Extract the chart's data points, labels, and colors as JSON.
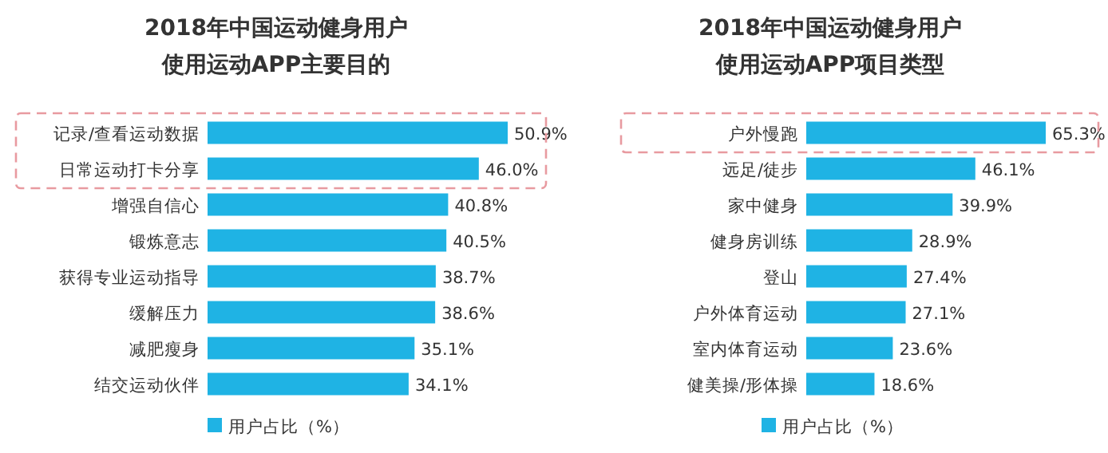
{
  "chart_data": [
    {
      "type": "bar",
      "orientation": "horizontal",
      "title": "2018年中国运动健身用户使用运动APP主要目的",
      "categories": [
        "记录/查看运动数据",
        "日常运动打卡分享",
        "增强自信心",
        "锻炼意志",
        "获得专业运动指导",
        "缓解压力",
        "减肥瘦身",
        "结交运动伙伴"
      ],
      "series": [
        {
          "name": "用户占比（%）",
          "color": "#1fb3e4",
          "values": [
            50.9,
            46.0,
            40.8,
            40.5,
            38.7,
            38.6,
            35.1,
            34.1
          ],
          "value_labels": [
            "50.9%",
            "46.0%",
            "40.8%",
            "40.5%",
            "38.7%",
            "38.6%",
            "35.1%",
            "34.1%"
          ]
        }
      ],
      "legend": "bottom"
    },
    {
      "type": "bar",
      "orientation": "horizontal",
      "title": "2018年中国运动健身用户使用运动APP项目类型",
      "categories": [
        "户外慢跑",
        "远足/徒步",
        "家中健身",
        "健身房训练",
        "登山",
        "户外体育运动",
        "室内体育运动",
        "健美操/形体操"
      ],
      "series": [
        {
          "name": "用户占比（%）",
          "color": "#1fb3e4",
          "values": [
            65.3,
            46.1,
            39.9,
            28.9,
            27.4,
            27.1,
            23.6,
            18.6
          ],
          "value_labels": [
            "65.3%",
            "46.1%",
            "39.9%",
            "28.9%",
            "27.4%",
            "27.1%",
            "23.6%",
            "18.6%"
          ]
        }
      ],
      "legend": "bottom"
    }
  ]
}
